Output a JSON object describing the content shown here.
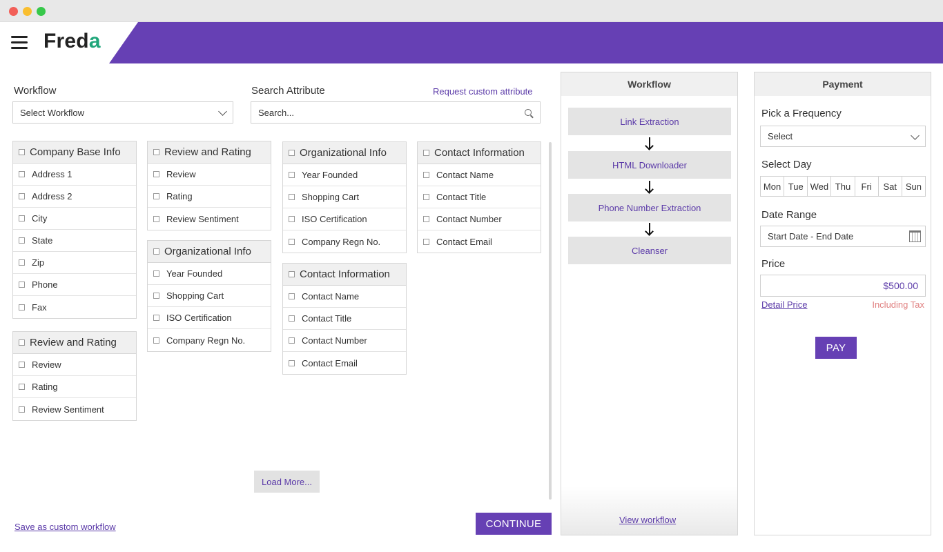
{
  "brand": {
    "name_main": "Fred",
    "name_accent": "a",
    "accent_color": "#1fa67a",
    "header_color": "#6640b4"
  },
  "filters": {
    "workflow_label": "Workflow",
    "workflow_select": "Select Workflow",
    "search_label": "Search Attribute",
    "search_placeholder": "Search...",
    "request_link": "Request custom attribute"
  },
  "cards": [
    {
      "title": "Company Base Info",
      "items": [
        "Address 1",
        "Address 2",
        "City",
        "State",
        "Zip",
        "Phone",
        "Fax"
      ]
    },
    {
      "title": "Review and Rating",
      "items": [
        "Review",
        "Rating",
        "Review Sentiment"
      ]
    },
    {
      "title": "Review and Rating",
      "items": [
        "Review",
        "Rating",
        "Review Sentiment"
      ]
    },
    {
      "title": "Organizational Info",
      "items": [
        "Year Founded",
        "Shopping Cart",
        "ISO Certification",
        "Company Regn No."
      ]
    },
    {
      "title": "Organizational Info",
      "items": [
        "Year Founded",
        "Shopping Cart",
        "ISO Certification",
        "Company Regn No."
      ]
    },
    {
      "title": "Contact Information",
      "items": [
        "Contact Name",
        "Contact Title",
        "Contact Number",
        "Contact Email"
      ]
    },
    {
      "title": "Contact Information",
      "items": [
        "Contact Name",
        "Contact Title",
        "Contact Number",
        "Contact Email"
      ]
    }
  ],
  "actions": {
    "load_more": "Load More...",
    "save_custom": "Save as custom workflow",
    "continue": "CONTINUE"
  },
  "workflow_panel": {
    "title": "Workflow",
    "steps": [
      "Link Extraction",
      "HTML Downloader",
      "Phone Number Extraction",
      "Cleanser"
    ],
    "view_link": "View workflow"
  },
  "payment_panel": {
    "title": "Payment",
    "frequency_label": "Pick a Frequency",
    "frequency_value": "Select",
    "day_label": "Select Day",
    "days": [
      "Mon",
      "Tue",
      "Wed",
      "Thu",
      "Fri",
      "Sat",
      "Sun"
    ],
    "date_label": "Date Range",
    "date_value": "Start Date - End Date",
    "price_label": "Price",
    "price_value": "$500.00",
    "detail_link": "Detail Price",
    "tax_note": "Including Tax",
    "pay_button": "PAY"
  }
}
